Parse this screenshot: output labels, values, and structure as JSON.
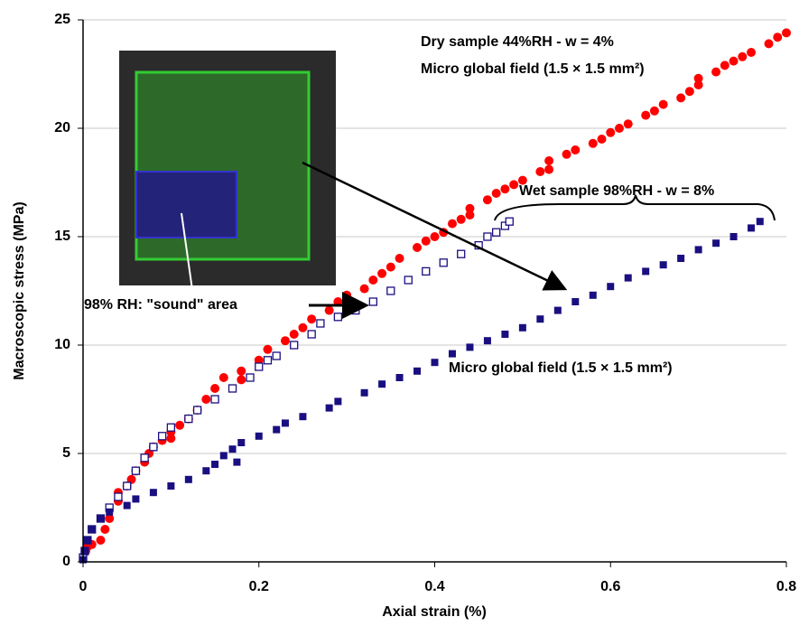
{
  "chart_data": {
    "type": "scatter",
    "x_label": "Axial strain (%)",
    "y_label": "Macroscopic stress (MPa)",
    "xlim": [
      0,
      0.8
    ],
    "ylim": [
      0,
      25
    ],
    "xticks": [
      0,
      0.2,
      0.4,
      0.6,
      0.8
    ],
    "yticks": [
      0,
      5,
      10,
      15,
      20,
      25
    ],
    "grid": true,
    "annotations": [
      "Dry sample 44%RH - w = 4%",
      "Micro global field (1.5 × 1.5 mm²)",
      "Wet sample 98%RH - w = 8%",
      "Micro global field (1.5 × 1.5 mm²)",
      "98% RH: \"sound\" area"
    ],
    "series": [
      {
        "color": "#ff0000",
        "marker": "circle",
        "x": [
          0.003,
          0.005,
          0.01,
          0.02,
          0.025,
          0.03,
          0.04,
          0.04,
          0.05,
          0.055,
          0.06,
          0.07,
          0.075,
          0.08,
          0.09,
          0.1,
          0.1,
          0.11,
          0.12,
          0.13,
          0.14,
          0.15,
          0.16,
          0.18,
          0.18,
          0.2,
          0.21,
          0.23,
          0.24,
          0.25,
          0.26,
          0.28,
          0.29,
          0.3,
          0.32,
          0.33,
          0.34,
          0.35,
          0.36,
          0.38,
          0.39,
          0.4,
          0.41,
          0.42,
          0.43,
          0.44,
          0.44,
          0.46,
          0.47,
          0.48,
          0.49,
          0.5,
          0.52,
          0.53,
          0.53,
          0.55,
          0.56,
          0.58,
          0.59,
          0.6,
          0.61,
          0.62,
          0.64,
          0.65,
          0.66,
          0.68,
          0.69,
          0.7,
          0.7,
          0.72,
          0.73,
          0.74,
          0.75,
          0.76,
          0.78,
          0.79,
          0.8
        ],
        "values": [
          0.5,
          0.7,
          0.8,
          1.0,
          1.5,
          2.0,
          2.8,
          3.2,
          3.5,
          3.8,
          4.2,
          4.6,
          5.0,
          5.3,
          5.6,
          6.0,
          5.7,
          6.3,
          6.6,
          7.0,
          7.5,
          8.0,
          8.5,
          8.8,
          8.4,
          9.3,
          9.8,
          10.2,
          10.5,
          10.8,
          11.2,
          11.6,
          12.0,
          12.3,
          12.6,
          13.0,
          13.3,
          13.6,
          14.0,
          14.5,
          14.8,
          15.0,
          15.2,
          15.6,
          15.8,
          16.0,
          16.3,
          16.7,
          17.0,
          17.2,
          17.4,
          17.6,
          18.0,
          18.5,
          18.1,
          18.8,
          19.0,
          19.3,
          19.5,
          19.8,
          20.0,
          20.2,
          20.6,
          20.8,
          21.1,
          21.4,
          21.7,
          22.0,
          22.3,
          22.6,
          22.9,
          23.1,
          23.3,
          23.5,
          23.9,
          24.2,
          24.4
        ]
      },
      {
        "color": "#1a0f80",
        "marker": "open-square",
        "x": [
          0,
          0.002,
          0.005,
          0.01,
          0.02,
          0.03,
          0.04,
          0.05,
          0.06,
          0.07,
          0.08,
          0.09,
          0.1,
          0.12,
          0.13,
          0.15,
          0.17,
          0.19,
          0.2,
          0.21,
          0.22,
          0.24,
          0.26,
          0.27,
          0.29,
          0.31,
          0.33,
          0.35,
          0.37,
          0.39,
          0.41,
          0.43,
          0.45,
          0.46,
          0.47,
          0.48,
          0.485
        ],
        "values": [
          0.2,
          0.5,
          1.0,
          1.5,
          2.0,
          2.5,
          3.0,
          3.5,
          4.2,
          4.8,
          5.3,
          5.8,
          6.2,
          6.6,
          7.0,
          7.5,
          8.0,
          8.5,
          9.0,
          9.3,
          9.5,
          10.0,
          10.5,
          11.0,
          11.3,
          11.6,
          12.0,
          12.5,
          13.0,
          13.4,
          13.8,
          14.2,
          14.6,
          15.0,
          15.2,
          15.5,
          15.7
        ]
      },
      {
        "color": "#1a0f80",
        "marker": "square",
        "x": [
          0,
          0.002,
          0.005,
          0.01,
          0.02,
          0.03,
          0.05,
          0.06,
          0.08,
          0.1,
          0.12,
          0.14,
          0.15,
          0.16,
          0.17,
          0.175,
          0.18,
          0.2,
          0.22,
          0.23,
          0.25,
          0.28,
          0.29,
          0.32,
          0.34,
          0.36,
          0.38,
          0.4,
          0.42,
          0.44,
          0.46,
          0.48,
          0.5,
          0.52,
          0.54,
          0.56,
          0.58,
          0.6,
          0.62,
          0.64,
          0.66,
          0.68,
          0.7,
          0.72,
          0.74,
          0.76,
          0.77
        ],
        "values": [
          0.1,
          0.5,
          1.0,
          1.5,
          2.0,
          2.3,
          2.6,
          2.9,
          3.2,
          3.5,
          3.8,
          4.2,
          4.5,
          4.9,
          5.2,
          4.6,
          5.5,
          5.8,
          6.1,
          6.4,
          6.7,
          7.1,
          7.4,
          7.8,
          8.2,
          8.5,
          8.8,
          9.2,
          9.6,
          9.9,
          10.2,
          10.5,
          10.8,
          11.2,
          11.6,
          12.0,
          12.3,
          12.7,
          13.1,
          13.4,
          13.7,
          14.0,
          14.4,
          14.7,
          15.0,
          15.4,
          15.7
        ]
      }
    ]
  }
}
